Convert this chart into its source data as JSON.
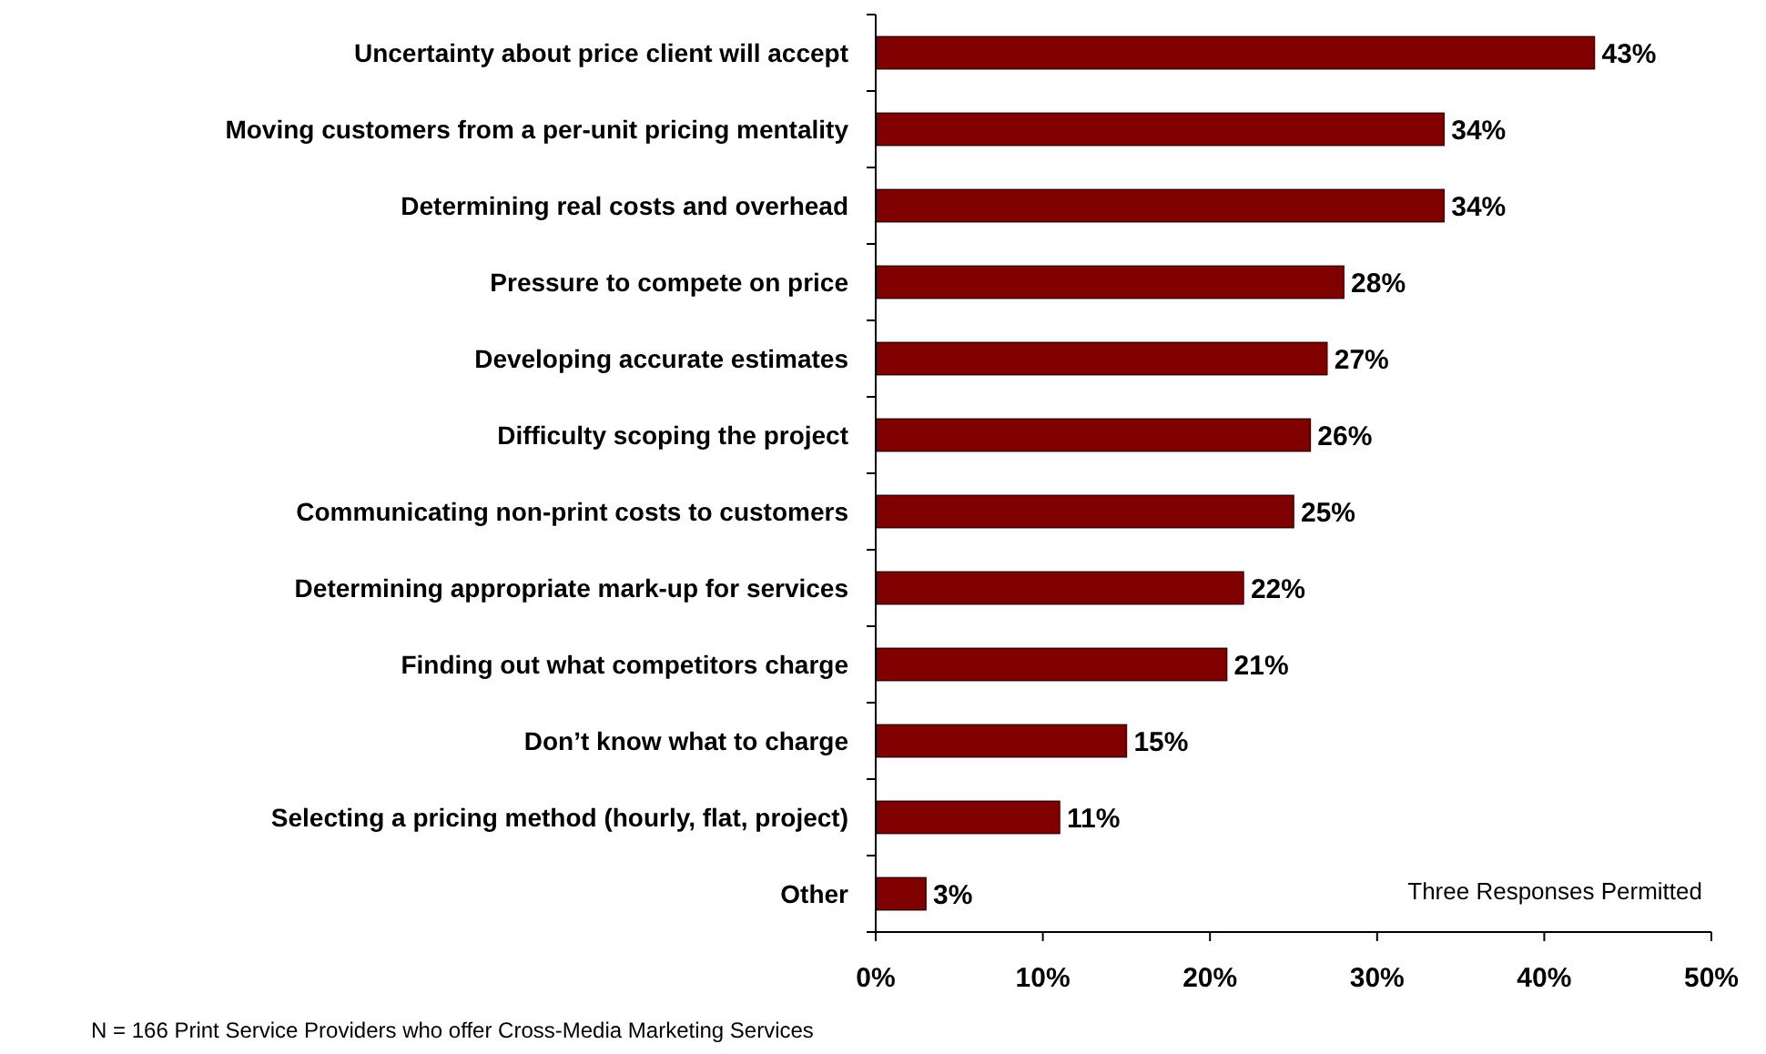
{
  "chart_data": {
    "type": "bar",
    "orientation": "horizontal",
    "categories": [
      "Uncertainty about price client will accept",
      "Moving customers from a per-unit pricing mentality",
      "Determining real costs and overhead",
      "Pressure to compete on price",
      "Developing accurate estimates",
      "Difficulty scoping the project",
      "Communicating non-print costs to customers",
      "Determining appropriate mark-up for services",
      "Finding out what competitors charge",
      "Don’t know what to charge",
      "Selecting a pricing method (hourly, flat, project)",
      "Other"
    ],
    "values": [
      43,
      34,
      34,
      28,
      27,
      26,
      25,
      22,
      21,
      15,
      11,
      3
    ],
    "value_labels": [
      "43%",
      "34%",
      "34%",
      "28%",
      "27%",
      "26%",
      "25%",
      "22%",
      "21%",
      "15%",
      "11%",
      "3%"
    ],
    "color": "#800000",
    "xlim": [
      0,
      50
    ],
    "xticks": [
      {
        "value": 0,
        "label": "0%"
      },
      {
        "value": 10,
        "label": "10%"
      },
      {
        "value": 20,
        "label": "20%"
      },
      {
        "value": 30,
        "label": "30%"
      },
      {
        "value": 40,
        "label": "40%"
      },
      {
        "value": 50,
        "label": "50%"
      }
    ],
    "grid": false,
    "annotations": [
      "Three Responses Permitted",
      "N = 166 Print Service Providers who offer Cross-Media Marketing Services"
    ]
  }
}
